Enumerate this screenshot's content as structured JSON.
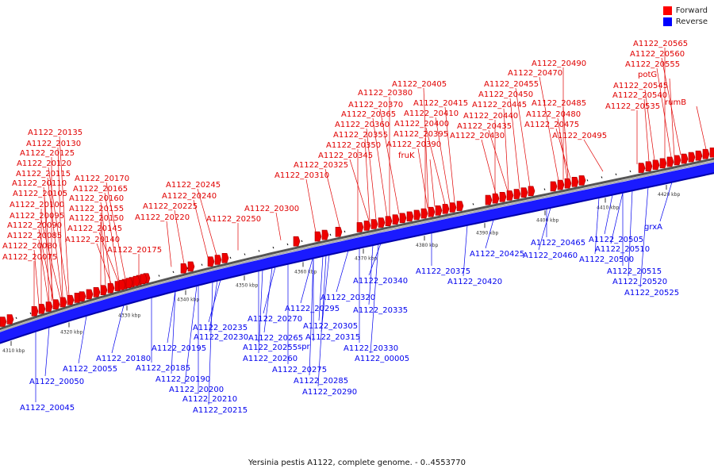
{
  "legend": {
    "forward_label": "Forward",
    "reverse_label": "Reverse",
    "forward_color": "#ff0000",
    "reverse_color": "#0000ff"
  },
  "caption": "Yersinia pestis A1122, complete genome. - 0..4553770",
  "ticks": [
    "4310 kbp",
    "4320 kbp",
    "4330 kbp",
    "4340 kbp",
    "4350 kbp",
    "4360 kbp",
    "4370 kbp",
    "4380 kbp",
    "4390 kbp",
    "4400 kbp",
    "4410 kbp",
    "4420 kbp"
  ],
  "forward_labels": [
    "A1122_20075",
    "A1122_20080",
    "A1122_20085",
    "A1122_20090",
    "A1122_20095",
    "A1122_20100",
    "A1122_20105",
    "A1122_20110",
    "A1122_20115",
    "A1122_20120",
    "A1122_20125",
    "A1122_20130",
    "A1122_20135",
    "A1122_20140",
    "A1122_20145",
    "A1122_20150",
    "A1122_20155",
    "A1122_20160",
    "A1122_20165",
    "A1122_20170",
    "A1122_20175",
    "A1122_20220",
    "A1122_20225",
    "A1122_20240",
    "A1122_20245",
    "A1122_20250",
    "A1122_20300",
    "A1122_20310",
    "A1122_20325",
    "A1122_20345",
    "A1122_20350",
    "A1122_20355",
    "A1122_20360",
    "A1122_20365",
    "A1122_20370",
    "A1122_20380",
    "A1122_20405",
    "A1122_20415",
    "A1122_20410",
    "A1122_20400",
    "A1122_20395",
    "fruK",
    "A1122_20390",
    "A1122_20430",
    "A1122_20435",
    "A1122_20440",
    "A1122_20445",
    "A1122_20450",
    "A1122_20455",
    "A1122_20470",
    "A1122_20490",
    "A1122_20485",
    "A1122_20480",
    "A1122_20475",
    "A1122_20495",
    "A1122_20535",
    "A1122_20540",
    "A1122_20545",
    "A1122_20555",
    "A1122_20560",
    "A1122_20565",
    "potG",
    "rumB"
  ],
  "reverse_labels": [
    "A1122_20045",
    "A1122_20050",
    "A1122_20055",
    "A1122_20180",
    "A1122_20185",
    "A1122_20190",
    "A1122_20195",
    "A1122_20200",
    "A1122_20210",
    "A1122_20215",
    "A1122_20230",
    "A1122_20235",
    "A1122_20255",
    "A1122_20260",
    "A1122_20265",
    "A1122_20270",
    "A1122_20275",
    "A1122_20285",
    "A1122_20290",
    "A1122_20295",
    "spr",
    "A1122_20305",
    "A1122_20315",
    "A1122_20320",
    "A1122_20330",
    "A1122_20335",
    "A1122_00005",
    "A1122_20340",
    "A1122_20375",
    "A1122_20420",
    "A1122_20425",
    "A1122_20460",
    "A1122_20465",
    "A1122_20500",
    "A1122_20505",
    "A1122_20510",
    "A1122_20515",
    "A1122_20520",
    "A1122_20525",
    "grxA"
  ]
}
